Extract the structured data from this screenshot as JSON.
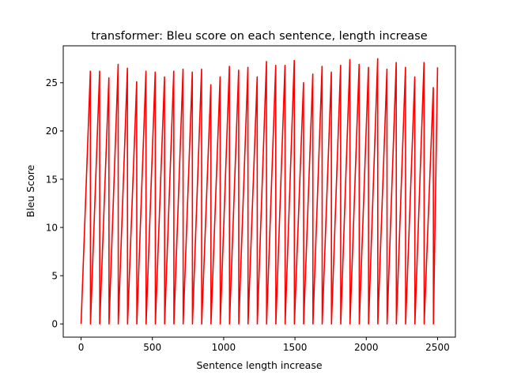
{
  "chart_data": {
    "type": "line",
    "title": "transformer: Bleu score on each sentence, length increase",
    "xlabel": "Sentence length increase",
    "ylabel": "Bleu Score",
    "xlim": [
      -125,
      2625
    ],
    "ylim": [
      -1.37,
      28.83
    ],
    "xticks": [
      0,
      500,
      1000,
      1500,
      2000,
      2500
    ],
    "yticks": [
      0,
      5,
      10,
      15,
      20,
      25
    ],
    "grid": false,
    "legend": "none",
    "series": [
      {
        "color": "#ff0000",
        "cycles": [
          {
            "start": 0,
            "end": 65,
            "peak": 26.2
          },
          {
            "start": 66,
            "end": 130,
            "peak": 26.2
          },
          {
            "start": 131,
            "end": 195,
            "peak": 25.5
          },
          {
            "start": 196,
            "end": 260,
            "peak": 26.9
          },
          {
            "start": 261,
            "end": 325,
            "peak": 26.5
          },
          {
            "start": 326,
            "end": 390,
            "peak": 25.1
          },
          {
            "start": 391,
            "end": 455,
            "peak": 26.2
          },
          {
            "start": 456,
            "end": 520,
            "peak": 26.1
          },
          {
            "start": 521,
            "end": 585,
            "peak": 25.6
          },
          {
            "start": 586,
            "end": 650,
            "peak": 26.2
          },
          {
            "start": 651,
            "end": 715,
            "peak": 26.4
          },
          {
            "start": 716,
            "end": 780,
            "peak": 26.1
          },
          {
            "start": 781,
            "end": 845,
            "peak": 26.4
          },
          {
            "start": 846,
            "end": 910,
            "peak": 24.8
          },
          {
            "start": 911,
            "end": 975,
            "peak": 25.6
          },
          {
            "start": 976,
            "end": 1040,
            "peak": 26.7
          },
          {
            "start": 1041,
            "end": 1105,
            "peak": 26.3
          },
          {
            "start": 1106,
            "end": 1170,
            "peak": 26.6
          },
          {
            "start": 1171,
            "end": 1235,
            "peak": 25.6
          },
          {
            "start": 1236,
            "end": 1300,
            "peak": 27.2
          },
          {
            "start": 1301,
            "end": 1365,
            "peak": 26.8
          },
          {
            "start": 1366,
            "end": 1430,
            "peak": 26.8
          },
          {
            "start": 1431,
            "end": 1495,
            "peak": 27.3
          },
          {
            "start": 1496,
            "end": 1560,
            "peak": 25.0
          },
          {
            "start": 1561,
            "end": 1625,
            "peak": 25.9
          },
          {
            "start": 1626,
            "end": 1690,
            "peak": 26.7
          },
          {
            "start": 1691,
            "end": 1755,
            "peak": 26.1
          },
          {
            "start": 1756,
            "end": 1820,
            "peak": 26.8
          },
          {
            "start": 1821,
            "end": 1885,
            "peak": 27.4
          },
          {
            "start": 1886,
            "end": 1950,
            "peak": 26.9
          },
          {
            "start": 1951,
            "end": 2015,
            "peak": 26.6
          },
          {
            "start": 2016,
            "end": 2080,
            "peak": 27.5
          },
          {
            "start": 2081,
            "end": 2145,
            "peak": 26.4
          },
          {
            "start": 2146,
            "end": 2210,
            "peak": 27.1
          },
          {
            "start": 2211,
            "end": 2275,
            "peak": 26.6
          },
          {
            "start": 2276,
            "end": 2340,
            "peak": 25.6
          },
          {
            "start": 2341,
            "end": 2405,
            "peak": 27.1
          },
          {
            "start": 2406,
            "end": 2470,
            "peak": 24.5
          },
          {
            "start": 2471,
            "end": 2500,
            "peak": 26.6
          }
        ]
      }
    ]
  }
}
